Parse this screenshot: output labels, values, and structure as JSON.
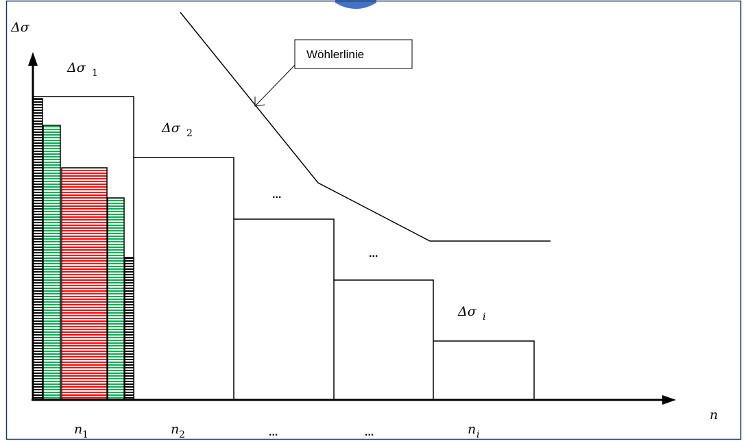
{
  "labels": {
    "y_axis_symbol": "Δσ",
    "x_axis_symbol": "n",
    "delta_sigma": "Δσ",
    "sub_1": "1",
    "sub_2": "2",
    "sub_i": "i",
    "ellipsis": "...",
    "callout": "Wöhlerlinie"
  },
  "x_labels": [
    {
      "base": "n",
      "sub": "1"
    },
    {
      "base": "n",
      "sub": "2"
    },
    {
      "base": "...",
      "sub": ""
    },
    {
      "base": "...",
      "sub": ""
    },
    {
      "base": "n",
      "sub": "i"
    }
  ],
  "colors": {
    "line": "#000000",
    "border": "#1f3864",
    "green": "#00b050",
    "red": "#ff0000",
    "black_hatch": "#000000",
    "connector": "#4472c4"
  }
}
